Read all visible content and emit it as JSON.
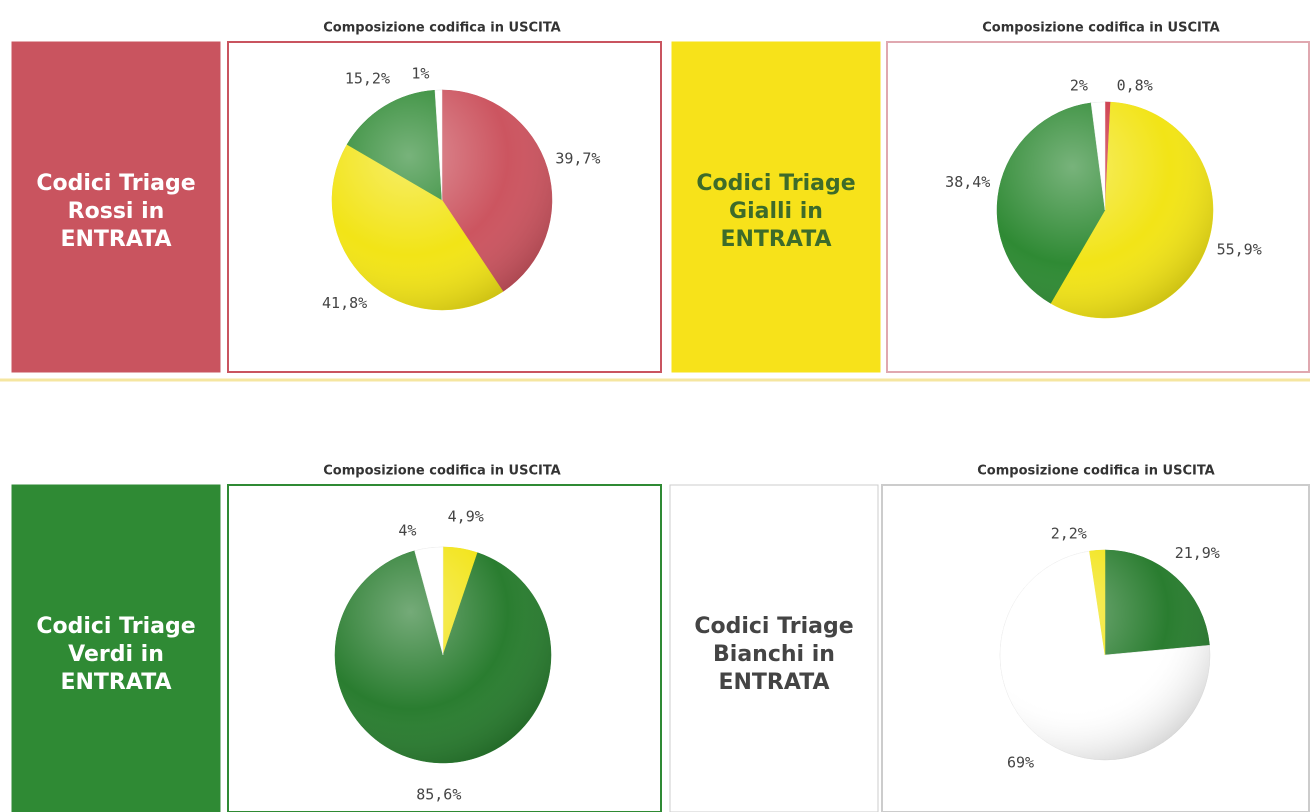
{
  "chart_data": [
    {
      "type": "pie",
      "title": "Composizione codifica in USCITA",
      "side_label": [
        "Codici Triage",
        "Rossi in",
        "ENTRATA"
      ],
      "panel_color": "#c9545f",
      "side_text_color": "#ffffff",
      "border_color": "#c9545f",
      "values": [
        39.7,
        41.8,
        15.2,
        1
      ],
      "value_labels": [
        "39,7%",
        "41,8%",
        "15,2%",
        "1%"
      ],
      "colors": [
        "#cc5560",
        "#f2e417",
        "#2f8a34",
        "#ffffff"
      ]
    },
    {
      "type": "pie",
      "title": "Composizione codifica in USCITA",
      "side_label": [
        "Codici Triage",
        "Gialli in",
        "ENTRATA"
      ],
      "panel_color": "#f7e21a",
      "side_text_color": "#3d6b2a",
      "border_color": "#e0a8b0",
      "values": [
        0.8,
        55.9,
        38.4,
        2
      ],
      "value_labels": [
        "0,8%",
        "55,9%",
        "38,4%",
        "2%"
      ],
      "colors": [
        "#cc3344",
        "#f2e417",
        "#2f8a34",
        "#ffffff"
      ]
    },
    {
      "type": "pie",
      "title": "Composizione codifica in USCITA",
      "side_label": [
        "Codici Triage",
        "Verdi in",
        "ENTRATA"
      ],
      "panel_color": "#2f8a34",
      "side_text_color": "#ffffff",
      "border_color": "#2f8a34",
      "values": [
        4.9,
        85.6,
        4
      ],
      "value_labels": [
        "4,9%",
        "85,6%",
        "4%"
      ],
      "colors": [
        "#f2e417",
        "#2a7d30",
        "#ffffff"
      ]
    },
    {
      "type": "pie",
      "title": "Composizione codifica in USCITA",
      "side_label": [
        "Codici Triage",
        "Bianchi in",
        "ENTRATA"
      ],
      "panel_color": "#ffffff",
      "side_text_color": "#444444",
      "border_color": "#cccccc",
      "values": [
        21.9,
        69,
        2.2
      ],
      "value_labels": [
        "21,9%",
        "69%",
        "2,2%"
      ],
      "colors": [
        "#2a7d30",
        "#ffffff",
        "#f2e417"
      ]
    }
  ]
}
